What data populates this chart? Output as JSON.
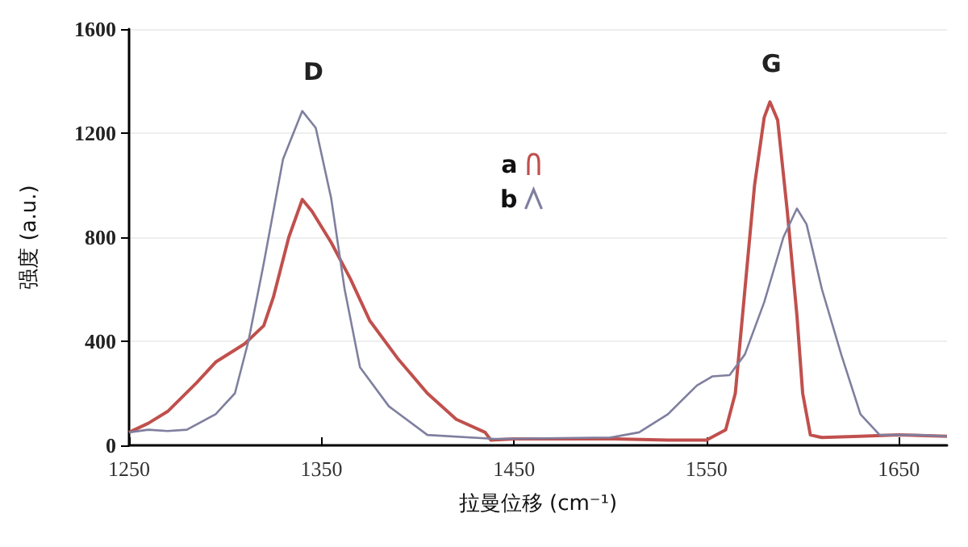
{
  "chart_data": {
    "type": "line",
    "xlabel": "拉曼位移 (cm⁻¹)",
    "ylabel": "强度 (a.u.)",
    "xlim": [
      1250,
      1675
    ],
    "xticks": [
      1250,
      1350,
      1450,
      1550,
      1650
    ],
    "ylim": [
      0,
      1600
    ],
    "yticks": [
      0,
      400,
      800,
      1200,
      1600
    ],
    "grid": "y",
    "legend": "top",
    "marker": "none",
    "annotations": [
      "D",
      "G"
    ],
    "series": [
      {
        "name": "a",
        "color": "#c0504d",
        "x": [
          1250,
          1260,
          1270,
          1285,
          1295,
          1310,
          1320,
          1325,
          1333,
          1340,
          1345,
          1355,
          1365,
          1375,
          1390,
          1405,
          1420,
          1435,
          1438,
          1450,
          1500,
          1530,
          1550,
          1560,
          1565,
          1570,
          1575,
          1580,
          1583,
          1587,
          1592,
          1597,
          1600,
          1604,
          1610,
          1630,
          1650,
          1675
        ],
        "values": [
          50,
          85,
          130,
          240,
          320,
          390,
          460,
          570,
          800,
          945,
          900,
          780,
          640,
          480,
          330,
          200,
          100,
          50,
          20,
          25,
          25,
          20,
          20,
          60,
          200,
          600,
          1000,
          1260,
          1320,
          1250,
          900,
          500,
          200,
          40,
          30,
          35,
          40,
          35
        ]
      },
      {
        "name": "b",
        "color": "#7f7f9f",
        "x": [
          1250,
          1260,
          1270,
          1280,
          1295,
          1305,
          1312,
          1320,
          1330,
          1340,
          1347,
          1355,
          1362,
          1370,
          1385,
          1405,
          1440,
          1500,
          1515,
          1530,
          1545,
          1553,
          1562,
          1570,
          1580,
          1590,
          1597,
          1602,
          1610,
          1620,
          1630,
          1640,
          1660,
          1675
        ],
        "values": [
          50,
          60,
          55,
          60,
          120,
          200,
          400,
          700,
          1100,
          1285,
          1220,
          950,
          600,
          300,
          150,
          40,
          25,
          30,
          50,
          120,
          230,
          265,
          270,
          350,
          550,
          800,
          910,
          850,
          600,
          350,
          120,
          40,
          40,
          35
        ]
      }
    ]
  }
}
